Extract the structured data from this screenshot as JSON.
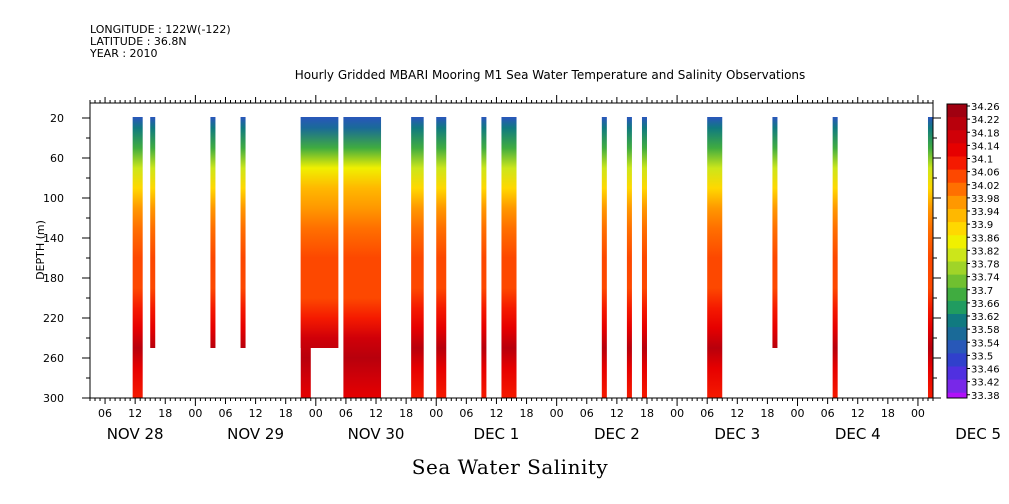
{
  "header": {
    "longitude": "LONGITUDE : 122W(-122)",
    "latitude": "LATITUDE : 36.8N",
    "year": "YEAR : 2010"
  },
  "chart_data": {
    "type": "heatmap",
    "title": "Hourly Gridded MBARI Mooring M1 Sea Water Temperature and Salinity Observations",
    "xlabel": "Sea Water Salinity",
    "ylabel": "DEPTH (m)",
    "y_reversed": true,
    "ylim": [
      300,
      5
    ],
    "y_ticks": [
      20,
      60,
      100,
      140,
      180,
      220,
      260,
      300
    ],
    "x_unit": "hours since NOV 28 00:00",
    "xlim": [
      3,
      171
    ],
    "x_hour_ticks": [
      "06",
      "12",
      "18",
      "00",
      "06",
      "12",
      "18",
      "00",
      "06",
      "12",
      "18",
      "00",
      "06",
      "12",
      "18",
      "00",
      "06",
      "12",
      "18",
      "00",
      "06",
      "12",
      "18",
      "00",
      "06",
      "12",
      "18",
      "00",
      "06",
      "12",
      "18",
      "00"
    ],
    "x_day_labels": [
      "NOV 28",
      "NOV 29",
      "NOV 30",
      "DEC  1",
      "DEC  2",
      "DEC  3",
      "DEC  4",
      "DEC  5"
    ],
    "colorbar": {
      "labels": [
        "34.26",
        "34.22",
        "34.18",
        "34.14",
        "34.1",
        "34.06",
        "34.02",
        "33.98",
        "33.94",
        "33.9",
        "33.86",
        "33.82",
        "33.78",
        "33.74",
        "33.7",
        "33.66",
        "33.62",
        "33.58",
        "33.54",
        "33.5",
        "33.46",
        "33.42",
        "33.38"
      ],
      "colors": [
        "#a00010",
        "#b8000c",
        "#d00008",
        "#e60000",
        "#f51a00",
        "#fd4800",
        "#ff7000",
        "#ff9800",
        "#ffb800",
        "#ffd800",
        "#f0f000",
        "#cce61a",
        "#a0d428",
        "#70c030",
        "#40ac40",
        "#209c60",
        "#107a80",
        "#1a6a98",
        "#2858b8",
        "#3040cc",
        "#5030e0",
        "#7828e8",
        "#b010f8"
      ]
    },
    "segments": [
      {
        "x0": 11.5,
        "x1": 13.5,
        "depth_max": 300,
        "type": "A"
      },
      {
        "x0": 15.0,
        "x1": 16.0,
        "depth_max": 250,
        "type": "A"
      },
      {
        "x0": 27.0,
        "x1": 28.0,
        "depth_max": 250,
        "type": "A"
      },
      {
        "x0": 33.0,
        "x1": 34.0,
        "depth_max": 250,
        "type": "A"
      },
      {
        "x0": 45.0,
        "x1": 52.5,
        "depth_max": 250,
        "type": "B"
      },
      {
        "x0": 45.0,
        "x1": 47.0,
        "depth_max": 300,
        "type": "B"
      },
      {
        "x0": 53.5,
        "x1": 61.0,
        "depth_max": 300,
        "type": "B"
      },
      {
        "x0": 67.0,
        "x1": 69.5,
        "depth_max": 300,
        "type": "A"
      },
      {
        "x0": 72.0,
        "x1": 74.0,
        "depth_max": 300,
        "type": "A"
      },
      {
        "x0": 81.0,
        "x1": 82.0,
        "depth_max": 300,
        "type": "A"
      },
      {
        "x0": 85.0,
        "x1": 88.0,
        "depth_max": 300,
        "type": "A"
      },
      {
        "x0": 105.0,
        "x1": 106.0,
        "depth_max": 300,
        "type": "A"
      },
      {
        "x0": 110.0,
        "x1": 111.0,
        "depth_max": 300,
        "type": "A"
      },
      {
        "x0": 113.0,
        "x1": 114.0,
        "depth_max": 300,
        "type": "A"
      },
      {
        "x0": 126.0,
        "x1": 129.0,
        "depth_max": 300,
        "type": "A"
      },
      {
        "x0": 139.0,
        "x1": 140.0,
        "depth_max": 250,
        "type": "A"
      },
      {
        "x0": 151.0,
        "x1": 152.0,
        "depth_max": 300,
        "type": "A"
      },
      {
        "x0": 170.0,
        "x1": 171.0,
        "depth_max": 300,
        "type": "A"
      }
    ],
    "profiles": {
      "A": [
        [
          20,
          33.54
        ],
        [
          30,
          33.62
        ],
        [
          50,
          33.72
        ],
        [
          70,
          33.82
        ],
        [
          90,
          33.9
        ],
        [
          110,
          33.96
        ],
        [
          130,
          34.01
        ],
        [
          160,
          34.05
        ],
        [
          190,
          34.07
        ],
        [
          210,
          34.09
        ],
        [
          230,
          34.14
        ],
        [
          250,
          34.2
        ],
        [
          270,
          34.16
        ],
        [
          300,
          34.12
        ]
      ],
      "B": [
        [
          20,
          33.52
        ],
        [
          30,
          33.6
        ],
        [
          50,
          33.72
        ],
        [
          70,
          33.84
        ],
        [
          90,
          33.92
        ],
        [
          110,
          33.98
        ],
        [
          130,
          34.03
        ],
        [
          160,
          34.06
        ],
        [
          200,
          34.08
        ],
        [
          220,
          34.11
        ],
        [
          240,
          34.18
        ],
        [
          260,
          34.22
        ],
        [
          280,
          34.18
        ],
        [
          300,
          34.14
        ]
      ]
    }
  }
}
